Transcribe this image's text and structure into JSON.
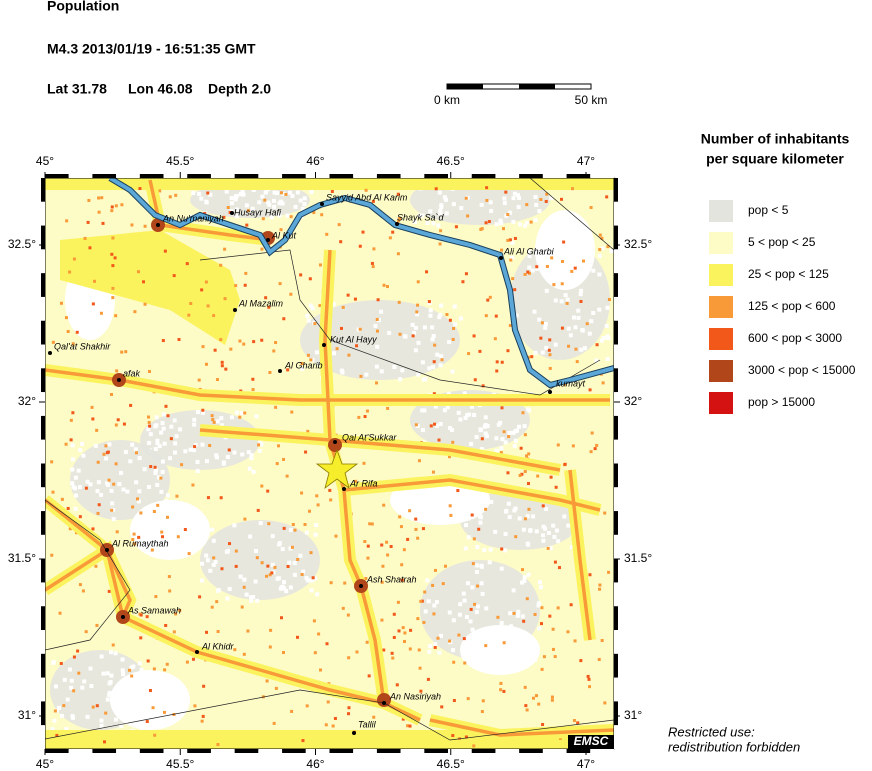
{
  "header": {
    "title": "Population",
    "event": "M4.3  2013/01/19 - 16:51:35 GMT",
    "lat": "Lat 31.78",
    "lon": "Lon 46.08",
    "depth": "Depth  2.0"
  },
  "scale_bar": {
    "start": "0 km",
    "end": "50 km"
  },
  "map": {
    "xticks": [
      {
        "value": 45,
        "label": "45°"
      },
      {
        "value": 45.5,
        "label": "45.5°"
      },
      {
        "value": 46,
        "label": "46°"
      },
      {
        "value": 46.5,
        "label": "46.5°"
      },
      {
        "value": 47,
        "label": "47°"
      }
    ],
    "yticks": [
      {
        "value": 32.5,
        "label": "32.5°"
      },
      {
        "value": 32,
        "label": "32°"
      },
      {
        "value": 31.5,
        "label": "31.5°"
      },
      {
        "value": 31,
        "label": "31°"
      }
    ],
    "cities": [
      "An Nu'maniyah",
      "Husayr Hafi",
      "Al Kut",
      "Sayyid Abd Al Karim",
      "Shayk Sa`d",
      "Ali Al Gharbi",
      "Al Mazalim",
      "Kut Al Hayy",
      "Qal'at Shakhir",
      "afak",
      "Al Gharib",
      "kumayt",
      "Qal At'Sukkar",
      "Ar Rifa",
      "Al Rumaythah",
      "Ash Shatrah",
      "As Samawah",
      "Al Khidr",
      "An Nasiriyah",
      "Tallil"
    ]
  },
  "legend": {
    "title": [
      "Number of inhabitants",
      "per square kilometer"
    ],
    "items": [
      {
        "label": "pop < 5",
        "color": "#e4e4df"
      },
      {
        "label": "5 < pop < 25",
        "color": "#fdfbc6"
      },
      {
        "label": "25 < pop < 125",
        "color": "#fbf35e"
      },
      {
        "label": "125 < pop < 600",
        "color": "#f89a38"
      },
      {
        "label": "600 < pop < 3000",
        "color": "#f2581a"
      },
      {
        "label": "3000 < pop < 15000",
        "color": "#b1461a"
      },
      {
        "label": "pop > 15000",
        "color": "#d41212"
      }
    ]
  },
  "footer": {
    "notice": [
      "Restricted use:",
      "redistribution forbidden"
    ],
    "logo": "EMSC"
  }
}
